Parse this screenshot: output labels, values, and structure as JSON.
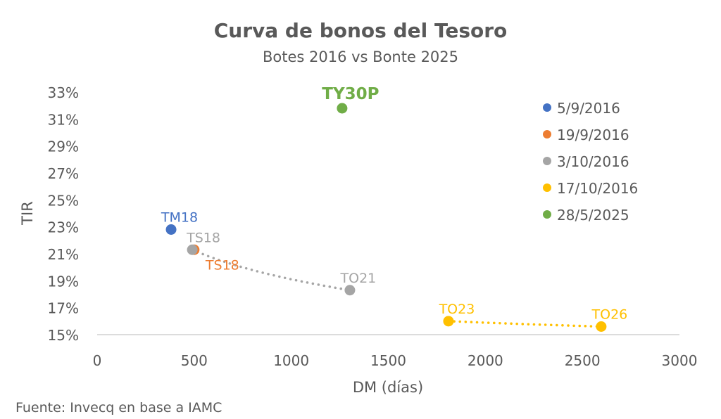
{
  "chart_data": {
    "type": "scatter",
    "title": "Curva de bonos del Tesoro",
    "subtitle": "Botes 2016 vs Bonte 2025",
    "xlabel": "DM (días)",
    "ylabel": "TIR",
    "xlim": [
      0,
      3000
    ],
    "ylim": [
      15,
      33
    ],
    "x_ticks": [
      "0",
      "500",
      "1000",
      "1500",
      "2000",
      "2500",
      "3000"
    ],
    "y_ticks": [
      "15%",
      "17%",
      "19%",
      "21%",
      "23%",
      "25%",
      "27%",
      "29%",
      "31%",
      "33%"
    ],
    "grid": false,
    "legend_position": "right",
    "source": "Fuente: Invecq en base a IAMC",
    "series": [
      {
        "name": "5/9/2016",
        "color": "#4472C4",
        "points": [
          {
            "label": "TM18",
            "x": 381,
            "y": 22.8
          }
        ],
        "trendline": false
      },
      {
        "name": "19/9/2016",
        "color": "#ED7D31",
        "points": [
          {
            "label": "TS18",
            "x": 500,
            "y": 21.3
          }
        ],
        "trendline": false
      },
      {
        "name": "3/10/2016",
        "color": "#A5A5A5",
        "points": [
          {
            "label": "TS18",
            "x": 490,
            "y": 21.3
          },
          {
            "label": "TO21",
            "x": 1302,
            "y": 18.3
          }
        ],
        "trendline": true
      },
      {
        "name": "17/10/2016",
        "color": "#FFC000",
        "points": [
          {
            "label": "TO23",
            "x": 1810,
            "y": 16.0
          },
          {
            "label": "TO26",
            "x": 2597,
            "y": 15.6
          }
        ],
        "trendline": true
      },
      {
        "name": "28/5/2025",
        "color": "#70AD47",
        "points": [
          {
            "label": "TY30P",
            "x": 1262,
            "y": 31.8
          }
        ],
        "trendline": false
      }
    ]
  }
}
